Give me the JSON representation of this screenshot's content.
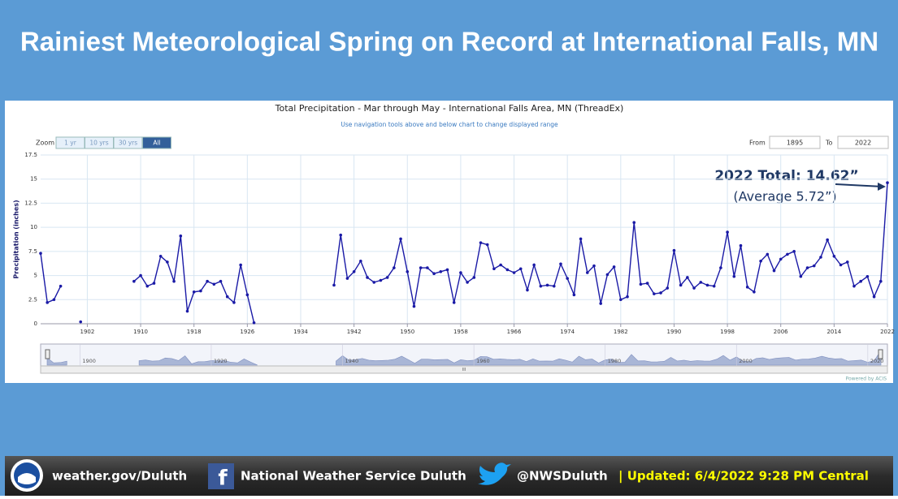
{
  "header": {
    "title": "Rainiest Meteorological Spring on Record at International Falls, MN"
  },
  "chart_data": {
    "type": "line",
    "title": "Total Precipitation - Mar through May - International Falls Area, MN (ThreadEx)",
    "subtitle": "Use navigation tools above and below chart to change displayed range",
    "y_label": "Precipitation (inches)",
    "zoom_label": "Zoom",
    "zoom_buttons": [
      "1 yr",
      "10 yrs",
      "30 yrs",
      "All"
    ],
    "from_label": "From",
    "from_value": "1895",
    "to_label": "To",
    "to_value": "2022",
    "annotations": [
      "2022 Total: 14.62”",
      "(Average 5.72”)"
    ],
    "credit": "Powered by ACIS",
    "x": [
      1895,
      1896,
      1897,
      1898,
      1899,
      1900,
      1901,
      1902,
      1903,
      1904,
      1905,
      1906,
      1907,
      1908,
      1909,
      1910,
      1911,
      1912,
      1913,
      1914,
      1915,
      1916,
      1917,
      1918,
      1919,
      1920,
      1921,
      1922,
      1923,
      1924,
      1925,
      1926,
      1927,
      1928,
      1929,
      1930,
      1931,
      1932,
      1933,
      1934,
      1935,
      1936,
      1937,
      1938,
      1939,
      1940,
      1941,
      1942,
      1943,
      1944,
      1945,
      1946,
      1947,
      1948,
      1949,
      1950,
      1951,
      1952,
      1953,
      1954,
      1955,
      1956,
      1957,
      1958,
      1959,
      1960,
      1961,
      1962,
      1963,
      1964,
      1965,
      1966,
      1967,
      1968,
      1969,
      1970,
      1971,
      1972,
      1973,
      1974,
      1975,
      1976,
      1977,
      1978,
      1979,
      1980,
      1981,
      1982,
      1983,
      1984,
      1985,
      1986,
      1987,
      1988,
      1989,
      1990,
      1991,
      1992,
      1993,
      1994,
      1995,
      1996,
      1997,
      1998,
      1999,
      2000,
      2001,
      2002,
      2003,
      2004,
      2005,
      2006,
      2007,
      2008,
      2009,
      2010,
      2011,
      2012,
      2013,
      2014,
      2015,
      2016,
      2017,
      2018,
      2019,
      2020,
      2021,
      2022
    ],
    "series": [
      {
        "name": "Precipitation",
        "color": "#1a1aa6",
        "values": [
          7.3,
          2.2,
          2.5,
          3.9,
          null,
          null,
          0.2,
          null,
          null,
          null,
          null,
          null,
          null,
          null,
          4.4,
          5.0,
          3.9,
          4.2,
          7.0,
          6.4,
          4.4,
          9.1,
          1.3,
          3.3,
          3.4,
          4.4,
          4.1,
          4.4,
          2.8,
          2.2,
          6.1,
          3.0,
          0.1,
          null,
          null,
          null,
          null,
          null,
          null,
          null,
          null,
          null,
          null,
          null,
          4.0,
          9.2,
          4.7,
          5.4,
          6.5,
          4.8,
          4.3,
          4.5,
          4.8,
          5.8,
          8.8,
          5.4,
          1.8,
          5.8,
          5.8,
          5.2,
          5.4,
          5.6,
          2.2,
          5.3,
          4.3,
          4.8,
          8.4,
          8.2,
          5.7,
          6.1,
          5.6,
          5.3,
          5.7,
          3.5,
          6.1,
          3.9,
          4.0,
          3.9,
          6.2,
          4.7,
          3.0,
          8.8,
          5.3,
          6.0,
          2.1,
          5.1,
          5.9,
          2.5,
          2.8,
          10.5,
          4.1,
          4.2,
          3.1,
          3.2,
          3.7,
          7.6,
          4.0,
          4.8,
          3.7,
          4.3,
          4.0,
          3.9,
          5.8,
          9.5,
          4.9,
          8.1,
          3.8,
          3.3,
          6.5,
          7.2,
          5.5,
          6.7,
          7.2,
          7.5,
          4.9,
          5.8,
          6.0,
          6.9,
          8.7,
          7.0,
          6.1,
          6.4,
          3.9,
          4.4,
          4.9,
          2.8,
          4.4,
          14.62
        ]
      }
    ],
    "xlim": [
      1895,
      2022
    ],
    "xticks": [
      1902,
      1910,
      1918,
      1926,
      1934,
      1942,
      1950,
      1958,
      1966,
      1974,
      1982,
      1990,
      1998,
      2006,
      2014,
      2022
    ],
    "ylim": [
      0,
      17.5
    ],
    "yticks": [
      0,
      2.5,
      5,
      7.5,
      10,
      12.5,
      15,
      17.5
    ],
    "grid": true,
    "navigator_ticks": [
      1900,
      1920,
      1940,
      1960,
      1980,
      2000,
      2020
    ]
  },
  "footer": {
    "website": "weather.gov/Duluth",
    "facebook": "National Weather Service Duluth",
    "twitter": "@NWSDuluth",
    "updated": "| Updated:  6/4/2022 9:28 PM Central"
  }
}
